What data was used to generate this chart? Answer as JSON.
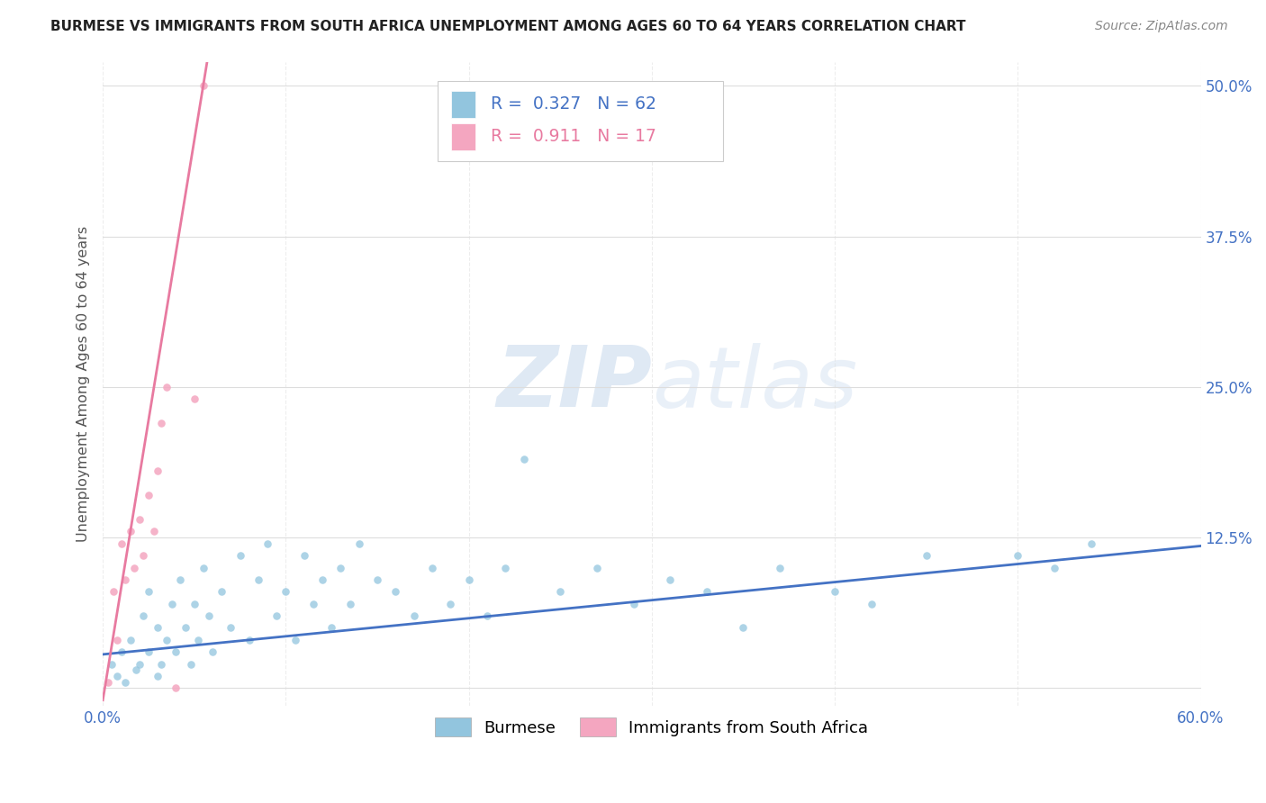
{
  "title": "BURMESE VS IMMIGRANTS FROM SOUTH AFRICA UNEMPLOYMENT AMONG AGES 60 TO 64 YEARS CORRELATION CHART",
  "source": "Source: ZipAtlas.com",
  "ylabel": "Unemployment Among Ages 60 to 64 years",
  "xlim": [
    0.0,
    0.6
  ],
  "ylim": [
    -0.015,
    0.52
  ],
  "xticks": [
    0.0,
    0.1,
    0.2,
    0.3,
    0.4,
    0.5,
    0.6
  ],
  "xticklabels": [
    "0.0%",
    "",
    "",
    "",
    "",
    "",
    "60.0%"
  ],
  "yticks": [
    0.0,
    0.125,
    0.25,
    0.375,
    0.5
  ],
  "yticklabels": [
    "",
    "12.5%",
    "25.0%",
    "37.5%",
    "50.0%"
  ],
  "burmese_color": "#92c5de",
  "sa_color": "#f4a6c0",
  "burmese_line_color": "#4472c4",
  "sa_line_color": "#e87aa0",
  "legend_R_burmese": "0.327",
  "legend_N_burmese": "62",
  "legend_R_sa": "0.911",
  "legend_N_sa": "17",
  "burmese_label": "Burmese",
  "sa_label": "Immigrants from South Africa",
  "watermark_zip": "ZIP",
  "watermark_atlas": "atlas",
  "bg_color": "#ffffff",
  "grid_color": "#dddddd",
  "burmese_x": [
    0.005,
    0.008,
    0.01,
    0.012,
    0.015,
    0.018,
    0.02,
    0.022,
    0.025,
    0.025,
    0.03,
    0.03,
    0.032,
    0.035,
    0.038,
    0.04,
    0.042,
    0.045,
    0.048,
    0.05,
    0.052,
    0.055,
    0.058,
    0.06,
    0.065,
    0.07,
    0.075,
    0.08,
    0.085,
    0.09,
    0.095,
    0.1,
    0.105,
    0.11,
    0.115,
    0.12,
    0.125,
    0.13,
    0.135,
    0.14,
    0.15,
    0.16,
    0.17,
    0.18,
    0.19,
    0.2,
    0.21,
    0.22,
    0.23,
    0.25,
    0.27,
    0.29,
    0.31,
    0.33,
    0.35,
    0.37,
    0.4,
    0.42,
    0.45,
    0.5,
    0.52,
    0.54
  ],
  "burmese_y": [
    0.02,
    0.01,
    0.03,
    0.005,
    0.04,
    0.015,
    0.02,
    0.06,
    0.03,
    0.08,
    0.01,
    0.05,
    0.02,
    0.04,
    0.07,
    0.03,
    0.09,
    0.05,
    0.02,
    0.07,
    0.04,
    0.1,
    0.06,
    0.03,
    0.08,
    0.05,
    0.11,
    0.04,
    0.09,
    0.12,
    0.06,
    0.08,
    0.04,
    0.11,
    0.07,
    0.09,
    0.05,
    0.1,
    0.07,
    0.12,
    0.09,
    0.08,
    0.06,
    0.1,
    0.07,
    0.09,
    0.06,
    0.1,
    0.19,
    0.08,
    0.1,
    0.07,
    0.09,
    0.08,
    0.05,
    0.1,
    0.08,
    0.07,
    0.11,
    0.11,
    0.1,
    0.12
  ],
  "sa_x": [
    0.003,
    0.006,
    0.008,
    0.01,
    0.012,
    0.015,
    0.017,
    0.02,
    0.022,
    0.025,
    0.028,
    0.03,
    0.032,
    0.035,
    0.04,
    0.05,
    0.055
  ],
  "sa_y": [
    0.005,
    0.08,
    0.04,
    0.12,
    0.09,
    0.13,
    0.1,
    0.14,
    0.11,
    0.16,
    0.13,
    0.18,
    0.22,
    0.25,
    0.0,
    0.24,
    0.5
  ],
  "burmese_trend_x0": 0.0,
  "burmese_trend_x1": 0.6,
  "burmese_trend_y0": 0.028,
  "burmese_trend_y1": 0.118,
  "sa_trend_x0": 0.0,
  "sa_trend_x1": 0.057,
  "sa_trend_y0": -0.01,
  "sa_trend_y1": 0.52
}
